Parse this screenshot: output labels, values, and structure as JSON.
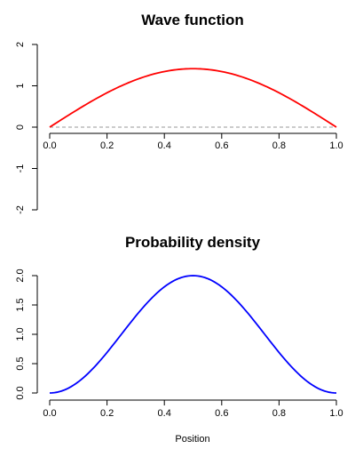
{
  "chart_data": [
    {
      "type": "line",
      "title": "Wave function",
      "xlabel": "",
      "ylabel": "",
      "xlim": [
        0,
        1
      ],
      "ylim": [
        -2,
        2
      ],
      "x_ticks": [
        "0.0",
        "0.2",
        "0.4",
        "0.6",
        "0.8",
        "1.0"
      ],
      "y_ticks": [
        "-2",
        "-1",
        "0",
        "1",
        "2"
      ],
      "zero_line": true,
      "color": "#ff0000",
      "series": [
        {
          "x": [
            0,
            0.1,
            0.2,
            0.3,
            0.4,
            0.5,
            0.6,
            0.7,
            0.8,
            0.9,
            1.0
          ],
          "y": [
            0,
            0.437,
            0.831,
            1.144,
            1.345,
            1.414,
            1.345,
            1.144,
            0.831,
            0.437,
            0
          ]
        }
      ]
    },
    {
      "type": "line",
      "title": "Probability density",
      "xlabel": "Position",
      "ylabel": "",
      "xlim": [
        0,
        1
      ],
      "ylim": [
        0,
        2
      ],
      "x_ticks": [
        "0.0",
        "0.2",
        "0.4",
        "0.6",
        "0.8",
        "1.0"
      ],
      "y_ticks": [
        "0.0",
        "0.5",
        "1.0",
        "1.5",
        "2.0"
      ],
      "zero_line": false,
      "color": "#0000ff",
      "series": [
        {
          "x": [
            0,
            0.1,
            0.2,
            0.3,
            0.4,
            0.5,
            0.6,
            0.7,
            0.8,
            0.9,
            1.0
          ],
          "y": [
            0,
            0.191,
            0.691,
            1.309,
            1.809,
            2.0,
            1.809,
            1.309,
            0.691,
            0.191,
            0
          ]
        }
      ]
    }
  ]
}
